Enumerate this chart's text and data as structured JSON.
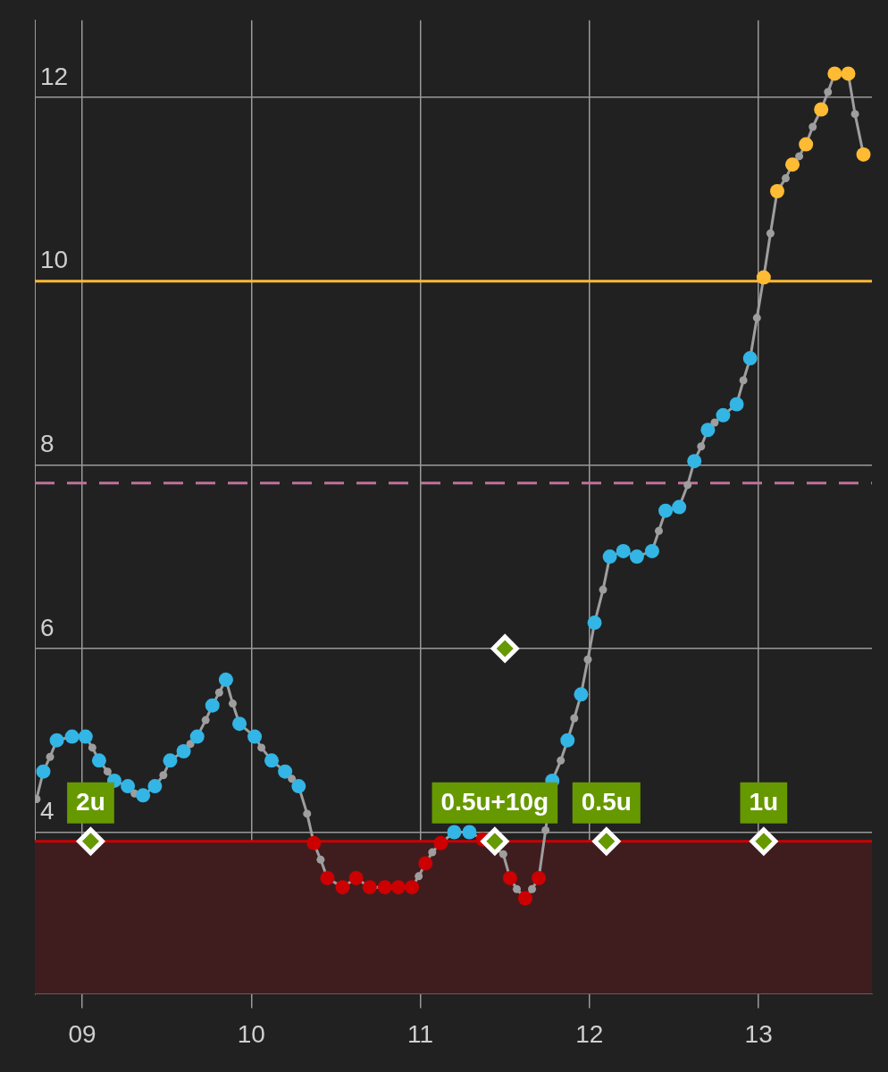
{
  "chart_data": {
    "type": "line",
    "xlim": [
      8.72,
      13.67
    ],
    "xticks": [
      {
        "value": 9,
        "label": "09"
      },
      10,
      11,
      12,
      13
    ],
    "ylim": [
      2.24,
      12.84
    ],
    "yticks": [
      4,
      6,
      8,
      10,
      12
    ],
    "grid": true,
    "legend": false,
    "series": [
      {
        "marker": "circle",
        "color": "#9e9e9e",
        "x": [
          8.73,
          8.77,
          8.81,
          8.85,
          8.94,
          9.02,
          9.06,
          9.1,
          9.15,
          9.19,
          9.27,
          9.31,
          9.36,
          9.43,
          9.48,
          9.52,
          9.6,
          9.64,
          9.68,
          9.73,
          9.77,
          9.81,
          9.85,
          9.89,
          9.93,
          10.02,
          10.06,
          10.12,
          10.2,
          10.24,
          10.28,
          10.33,
          10.37,
          10.41,
          10.45,
          10.54,
          10.62,
          10.7,
          10.79,
          10.87,
          10.95,
          10.99,
          11.03,
          11.07,
          11.12,
          11.2,
          11.29,
          11.37,
          11.49,
          11.53,
          11.57,
          11.62,
          11.66,
          11.7,
          11.74,
          11.78,
          11.83,
          11.87,
          11.91,
          11.95,
          11.99,
          12.03,
          12.08,
          12.12,
          12.2,
          12.28,
          12.37,
          12.41,
          12.45,
          12.53,
          12.58,
          12.62,
          12.66,
          12.7,
          12.74,
          12.79,
          12.87,
          12.91,
          12.95,
          12.99,
          13.03,
          13.07,
          13.11,
          13.16,
          13.2,
          13.24,
          13.28,
          13.32,
          13.37,
          13.41,
          13.45,
          13.53,
          13.57,
          13.62
        ],
        "values": [
          4.36,
          4.66,
          4.82,
          5.0,
          5.04,
          5.04,
          4.92,
          4.78,
          4.66,
          4.56,
          4.5,
          4.42,
          4.4,
          4.5,
          4.62,
          4.78,
          4.88,
          4.96,
          5.04,
          5.22,
          5.38,
          5.52,
          5.66,
          5.4,
          5.18,
          5.04,
          4.92,
          4.78,
          4.66,
          4.58,
          4.5,
          4.2,
          3.88,
          3.7,
          3.5,
          3.4,
          3.5,
          3.4,
          3.4,
          3.4,
          3.4,
          3.52,
          3.66,
          3.78,
          3.88,
          4.0,
          4.0,
          3.92,
          3.76,
          3.5,
          3.38,
          3.28,
          3.38,
          3.5,
          4.02,
          4.56,
          4.78,
          5.0,
          5.24,
          5.5,
          5.88,
          6.28,
          6.64,
          7.0,
          7.06,
          7.0,
          7.06,
          7.28,
          7.5,
          7.54,
          7.78,
          8.04,
          8.2,
          8.38,
          8.46,
          8.54,
          8.66,
          8.92,
          9.16,
          9.6,
          10.04,
          10.52,
          10.98,
          11.12,
          11.27,
          11.36,
          11.49,
          11.68,
          11.87,
          12.06,
          12.26,
          12.26,
          11.82,
          11.38
        ],
        "colors": [
          "#9e9e9e",
          "#33b5e5",
          "#9e9e9e",
          "#33b5e5",
          "#33b5e5",
          "#33b5e5",
          "#9e9e9e",
          "#33b5e5",
          "#9e9e9e",
          "#33b5e5",
          "#33b5e5",
          "#9e9e9e",
          "#33b5e5",
          "#33b5e5",
          "#9e9e9e",
          "#33b5e5",
          "#33b5e5",
          "#9e9e9e",
          "#33b5e5",
          "#9e9e9e",
          "#33b5e5",
          "#9e9e9e",
          "#33b5e5",
          "#9e9e9e",
          "#33b5e5",
          "#33b5e5",
          "#9e9e9e",
          "#33b5e5",
          "#33b5e5",
          "#9e9e9e",
          "#33b5e5",
          "#9e9e9e",
          "#cc0000",
          "#9e9e9e",
          "#cc0000",
          "#cc0000",
          "#cc0000",
          "#cc0000",
          "#cc0000",
          "#cc0000",
          "#cc0000",
          "#9e9e9e",
          "#cc0000",
          "#9e9e9e",
          "#cc0000",
          "#33b5e5",
          "#33b5e5",
          "#cc0000",
          "#9e9e9e",
          "#cc0000",
          "#9e9e9e",
          "#cc0000",
          "#9e9e9e",
          "#cc0000",
          "#9e9e9e",
          "#33b5e5",
          "#9e9e9e",
          "#33b5e5",
          "#9e9e9e",
          "#33b5e5",
          "#9e9e9e",
          "#33b5e5",
          "#9e9e9e",
          "#33b5e5",
          "#33b5e5",
          "#33b5e5",
          "#33b5e5",
          "#9e9e9e",
          "#33b5e5",
          "#33b5e5",
          "#9e9e9e",
          "#33b5e5",
          "#9e9e9e",
          "#33b5e5",
          "#9e9e9e",
          "#33b5e5",
          "#33b5e5",
          "#9e9e9e",
          "#33b5e5",
          "#9e9e9e",
          "#ffbb33",
          "#9e9e9e",
          "#ffbb33",
          "#9e9e9e",
          "#ffbb33",
          "#9e9e9e",
          "#ffbb33",
          "#9e9e9e",
          "#ffbb33",
          "#9e9e9e",
          "#ffbb33",
          "#ffbb33",
          "#9e9e9e",
          "#ffbb33"
        ]
      },
      {
        "type": "scatter",
        "marker": "diamond",
        "color": "#669900",
        "x": [
          9.05,
          11.44,
          12.1,
          13.03,
          11.5
        ],
        "values": [
          3.9,
          3.9,
          3.9,
          3.9,
          6
        ]
      }
    ],
    "ref_lines": [
      {
        "axis": "y",
        "value": 10,
        "color": "#ffbb33"
      },
      {
        "axis": "y",
        "value": 7.8,
        "color": "#c0709a",
        "line_style": "dashed"
      },
      {
        "axis": "y",
        "value": 3.9,
        "color": "#cc0000"
      }
    ],
    "bands": [
      {
        "axis": "y",
        "from": 2.24,
        "to": 3.9,
        "color": "#3f1d1f"
      }
    ],
    "annotations": [
      {
        "text": "2u",
        "x": 9.05,
        "y": 3.9
      },
      {
        "text": "0.5u+10g",
        "x": 11.44,
        "y": 3.9
      },
      {
        "text": "0.5u",
        "x": 12.1,
        "y": 3.9
      },
      {
        "text": "1u",
        "x": 13.03,
        "y": 3.9
      }
    ]
  }
}
